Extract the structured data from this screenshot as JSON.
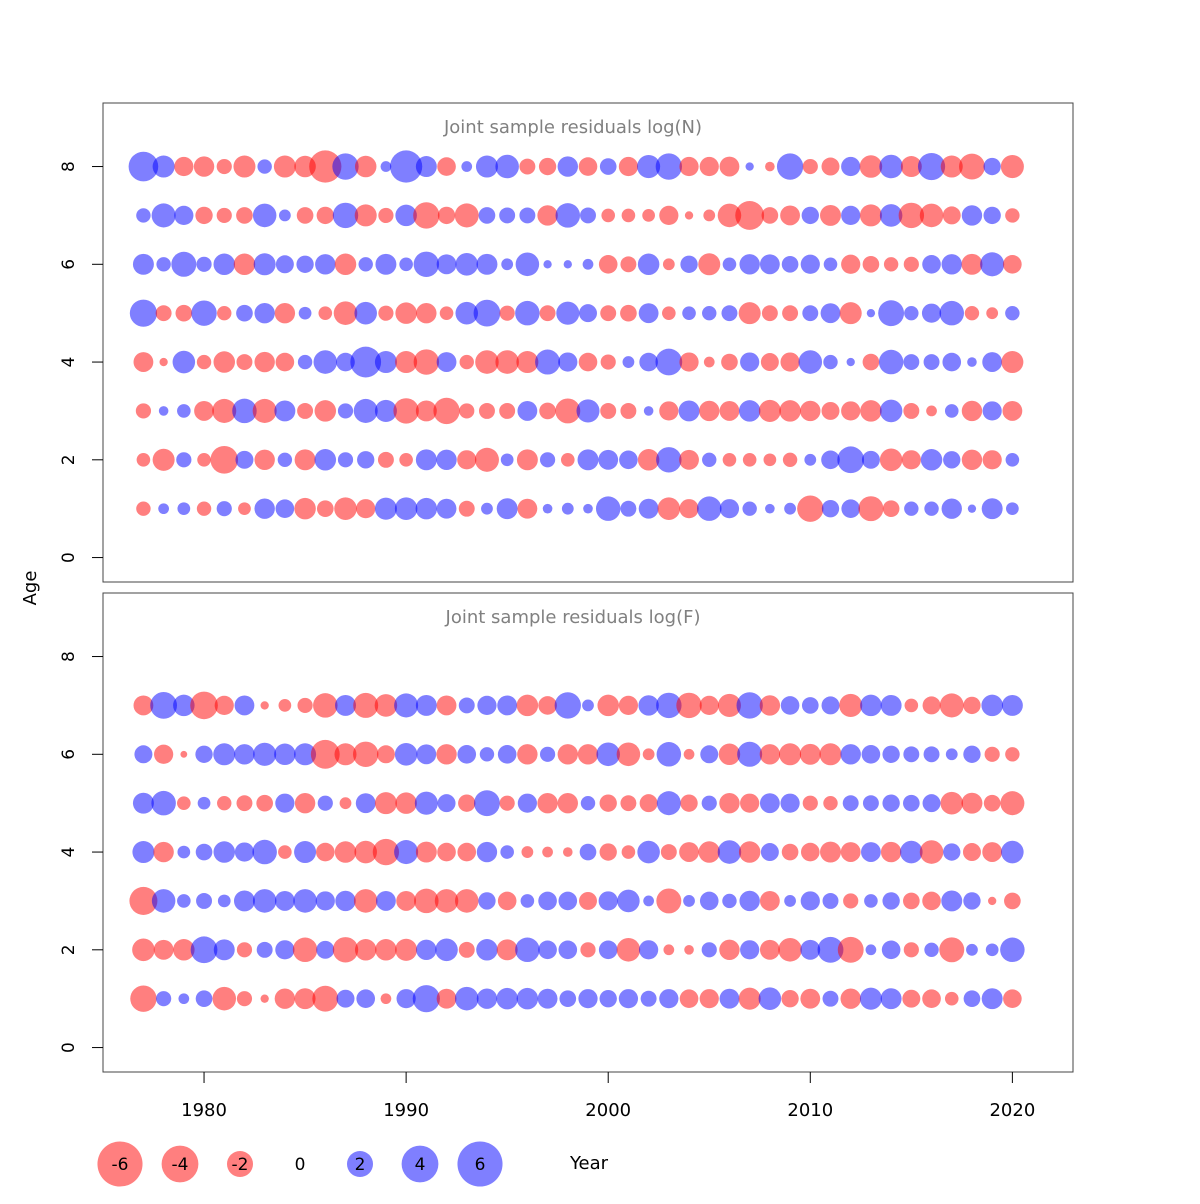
{
  "figure": {
    "ylabel": "Age",
    "xlabel": "Year",
    "colors": {
      "negative": "#ff0000",
      "positive": "#0000ff",
      "frame": "#444444",
      "title": "#808080"
    },
    "legend": {
      "values": [
        -6,
        -4,
        -2,
        0,
        2,
        4,
        6
      ],
      "labels": [
        "-6",
        "-4",
        "-2",
        "0",
        "2",
        "4",
        "6"
      ]
    }
  },
  "chart_data": [
    {
      "type": "scatter",
      "title": "Joint sample residuals log(N)",
      "xlim": [
        1975,
        2023
      ],
      "ylim": [
        -0.5,
        9.3
      ],
      "xticks": [
        1980,
        1990,
        2000,
        2010,
        2020
      ],
      "yticks": [
        0,
        2,
        4,
        6,
        8
      ],
      "years": [
        1977,
        1978,
        1979,
        1980,
        1981,
        1982,
        1983,
        1984,
        1985,
        1986,
        1987,
        1988,
        1989,
        1990,
        1991,
        1992,
        1993,
        1994,
        1995,
        1996,
        1997,
        1998,
        1999,
        2000,
        2001,
        2002,
        2003,
        2004,
        2005,
        2006,
        2007,
        2008,
        2009,
        2010,
        2011,
        2012,
        2013,
        2014,
        2015,
        2016,
        2017,
        2018,
        2019,
        2020
      ],
      "ages": [
        1,
        2,
        3,
        4,
        5,
        6,
        7,
        8
      ],
      "residuals": [
        [
          -0.9,
          0.5,
          0.7,
          -0.9,
          1.0,
          -0.7,
          1.8,
          1.5,
          -2.0,
          -1.2,
          -2.2,
          -1.6,
          2.1,
          2.2,
          2.0,
          1.7,
          -1.1,
          0.6,
          1.9,
          -1.7,
          0.4,
          0.6,
          0.4,
          2.6,
          1.1,
          1.7,
          -2.2,
          -1.6,
          2.6,
          1.6,
          0.9,
          0.4,
          0.6,
          -3.0,
          1.3,
          1.5,
          -2.7,
          -1.2,
          0.9,
          0.9,
          1.8,
          0.3,
          1.9,
          0.7
        ],
        [
          -0.8,
          -2.1,
          1.0,
          -0.8,
          -3.3,
          1.4,
          -1.8,
          0.9,
          -1.9,
          2.0,
          1.0,
          1.3,
          -1.1,
          -0.8,
          1.9,
          1.8,
          -1.6,
          -2.5,
          0.7,
          -1.9,
          1.0,
          -0.8,
          1.9,
          1.7,
          1.5,
          -2.0,
          2.8,
          -1.7,
          0.9,
          -0.8,
          -0.8,
          -0.7,
          -0.9,
          0.6,
          1.5,
          3.1,
          1.4,
          -2.2,
          -1.6,
          2.0,
          1.3,
          -1.8,
          -1.6,
          0.8
        ],
        [
          -1.0,
          0.4,
          0.8,
          -1.7,
          -2.5,
          2.6,
          -2.5,
          1.9,
          -1.1,
          -2.0,
          1.0,
          2.5,
          2.1,
          -2.8,
          -1.9,
          -3.0,
          -1.0,
          -1.1,
          -1.1,
          1.7,
          -1.2,
          -2.7,
          2.3,
          -1.1,
          -1.1,
          0.4,
          -1.6,
          1.9,
          -1.8,
          -1.7,
          2.0,
          -2.1,
          -2.0,
          -1.8,
          -1.4,
          -1.6,
          -2.0,
          2.2,
          -1.1,
          -0.5,
          0.8,
          -1.8,
          1.6,
          -1.7
        ],
        [
          -1.7,
          -0.3,
          2.2,
          -0.9,
          -2.0,
          -1.1,
          -1.8,
          -1.5,
          0.9,
          2.4,
          1.5,
          4.1,
          2.1,
          -2.1,
          -2.8,
          1.7,
          -0.9,
          -2.4,
          -2.4,
          -2.1,
          2.7,
          1.6,
          -1.5,
          -1.0,
          0.6,
          1.5,
          3.1,
          -1.6,
          -0.5,
          -1.2,
          1.6,
          -1.4,
          -1.6,
          2.4,
          0.9,
          0.3,
          -1.2,
          2.6,
          1.1,
          1.1,
          1.5,
          0.4,
          1.7,
          -2.1
        ],
        [
          3.2,
          -1.1,
          -1.2,
          2.8,
          -0.9,
          1.2,
          1.8,
          -1.8,
          0.7,
          -0.8,
          -2.4,
          2.2,
          -1.0,
          -2.0,
          -1.8,
          -0.8,
          2.2,
          3.1,
          -1.0,
          2.6,
          -1.1,
          2.3,
          1.4,
          -1.1,
          -1.2,
          1.7,
          -0.8,
          0.8,
          0.9,
          1.1,
          -2.1,
          -1.1,
          -1.1,
          1.1,
          1.7,
          -2.1,
          0.3,
          2.9,
          0.9,
          1.6,
          2.6,
          -0.9,
          -0.6,
          0.9
        ],
        [
          1.9,
          0.9,
          2.7,
          1.0,
          2.0,
          -2.0,
          2.1,
          1.4,
          1.3,
          1.8,
          -2.0,
          0.9,
          1.9,
          0.8,
          2.8,
          1.7,
          2.2,
          1.9,
          0.6,
          2.4,
          0.3,
          0.3,
          0.5,
          -1.5,
          -1.1,
          2.0,
          -0.6,
          1.3,
          -2.1,
          0.8,
          1.8,
          1.7,
          1.2,
          1.6,
          0.8,
          -1.6,
          -1.2,
          -0.9,
          -1.0,
          1.5,
          1.8,
          -1.9,
          2.5,
          -1.5
        ],
        [
          0.9,
          2.5,
          1.6,
          -1.3,
          -1.0,
          -1.2,
          2.4,
          0.6,
          -1.2,
          -1.3,
          2.8,
          -2.1,
          -1.0,
          2.0,
          -3.0,
          -1.3,
          -2.5,
          1.2,
          1.1,
          1.1,
          -1.8,
          2.6,
          1.1,
          -0.8,
          -0.8,
          -0.7,
          -1.6,
          -0.3,
          -0.6,
          -2.4,
          -3.6,
          -1.2,
          -1.7,
          1.3,
          -1.9,
          1.6,
          -2.1,
          2.2,
          -2.8,
          -2.4,
          -1.4,
          1.8,
          1.3,
          -0.9
        ],
        [
          3.8,
          2.1,
          -1.6,
          -1.8,
          -1.0,
          -2.1,
          0.9,
          -2.1,
          -2.0,
          -4.5,
          3.0,
          -2.0,
          0.5,
          4.5,
          1.9,
          -1.5,
          0.5,
          2.1,
          2.4,
          -1.1,
          -1.3,
          1.8,
          -1.5,
          1.2,
          -1.6,
          2.3,
          3.0,
          -1.6,
          -1.6,
          -1.7,
          0.3,
          -0.4,
          3.0,
          -1.0,
          -1.4,
          1.6,
          -2.2,
          2.4,
          -1.9,
          3.2,
          -2.1,
          -2.9,
          1.3,
          -2.3
        ]
      ]
    },
    {
      "type": "scatter",
      "title": "Joint sample residuals log(F)",
      "xlim": [
        1975,
        2023
      ],
      "ylim": [
        -0.5,
        9.3
      ],
      "xticks": [
        1980,
        1990,
        2000,
        2010,
        2020
      ],
      "yticks": [
        0,
        2,
        4,
        6,
        8
      ],
      "years": [
        1977,
        1978,
        1979,
        1980,
        1981,
        1982,
        1983,
        1984,
        1985,
        1986,
        1987,
        1988,
        1989,
        1990,
        1991,
        1992,
        1993,
        1994,
        1995,
        1996,
        1997,
        1998,
        1999,
        2000,
        2001,
        2002,
        2003,
        2004,
        2005,
        2006,
        2007,
        2008,
        2009,
        2010,
        2011,
        2012,
        2013,
        2014,
        2015,
        2016,
        2017,
        2018,
        2019,
        2020
      ],
      "ages": [
        1,
        2,
        3,
        4,
        5,
        6,
        7
      ],
      "residuals": [
        [
          -3.0,
          1.0,
          0.5,
          1.2,
          -2.4,
          -1.0,
          -0.3,
          -1.8,
          -1.9,
          -2.9,
          1.4,
          1.5,
          -0.5,
          1.6,
          3.2,
          -1.7,
          2.4,
          1.8,
          2.0,
          2.0,
          1.7,
          1.2,
          1.6,
          1.3,
          1.6,
          1.1,
          1.6,
          -1.5,
          -1.6,
          1.7,
          -2.1,
          2.2,
          -1.3,
          -1.7,
          1.1,
          -1.8,
          2.1,
          1.9,
          -1.4,
          -1.5,
          -0.8,
          1.2,
          1.9,
          -1.5
        ],
        [
          -2.2,
          -1.7,
          -2.0,
          3.1,
          1.9,
          -1.0,
          1.1,
          1.6,
          -2.6,
          1.4,
          -2.8,
          -2.0,
          -2.0,
          -2.1,
          1.8,
          2.2,
          -1.1,
          2.0,
          -1.9,
          2.6,
          1.5,
          1.5,
          -1.0,
          1.5,
          -2.4,
          1.6,
          -0.5,
          -0.4,
          1.0,
          -1.8,
          1.6,
          -1.7,
          -2.4,
          1.7,
          2.9,
          -2.9,
          0.5,
          1.5,
          -1.0,
          0.9,
          -2.7,
          0.6,
          0.7,
          2.6
        ],
        [
          -3.4,
          2.4,
          0.8,
          1.1,
          0.7,
          1.9,
          2.4,
          1.7,
          2.4,
          1.6,
          1.8,
          -2.4,
          1.7,
          -1.7,
          -2.6,
          -2.4,
          -2.4,
          1.3,
          -1.5,
          0.8,
          1.5,
          1.5,
          -1.4,
          1.6,
          2.2,
          0.5,
          -2.7,
          0.6,
          1.5,
          0.9,
          1.8,
          -1.7,
          0.6,
          1.6,
          1.1,
          -1.0,
          0.8,
          1.3,
          -1.2,
          -1.5,
          1.9,
          1.3,
          -0.3,
          -1.2
        ],
        [
          2.1,
          -1.8,
          0.7,
          1.2,
          2.0,
          1.6,
          2.6,
          -0.8,
          2.1,
          -1.5,
          -2.0,
          -2.2,
          -3.0,
          2.5,
          -1.9,
          -1.5,
          -1.5,
          1.8,
          0.8,
          -0.6,
          -0.5,
          -0.4,
          1.2,
          -1.3,
          -0.8,
          2.2,
          -1.1,
          -1.7,
          -2.0,
          2.4,
          -2.0,
          1.4,
          -1.2,
          -1.5,
          -1.9,
          -1.7,
          1.7,
          -1.8,
          2.2,
          -2.4,
          1.3,
          -1.4,
          -1.7,
          2.2
        ],
        [
          1.9,
          2.6,
          -0.8,
          0.7,
          -0.9,
          -1.1,
          -1.2,
          1.6,
          -1.8,
          1.0,
          -0.6,
          1.7,
          -2.1,
          -2.0,
          2.3,
          1.4,
          -1.3,
          2.9,
          -1.0,
          1.6,
          -1.8,
          -1.8,
          0.9,
          -1.3,
          -1.1,
          -1.4,
          2.5,
          -1.3,
          1.0,
          -1.8,
          -1.6,
          1.7,
          1.6,
          -1.0,
          -0.9,
          1.1,
          1.1,
          1.3,
          1.2,
          1.4,
          -2.2,
          -1.9,
          -1.2,
          -2.5
        ],
        [
          1.4,
          -1.6,
          -0.2,
          1.3,
          2.1,
          1.8,
          2.3,
          2.0,
          2.1,
          -3.6,
          -2.1,
          -2.8,
          -1.4,
          2.2,
          1.7,
          -1.8,
          1.5,
          0.9,
          1.5,
          -1.8,
          1.0,
          -1.8,
          -1.8,
          2.4,
          -2.4,
          -0.6,
          2.6,
          -0.5,
          1.4,
          -2.0,
          2.7,
          -1.8,
          -2.1,
          -1.9,
          -2.1,
          1.8,
          1.5,
          1.3,
          1.1,
          1.1,
          0.6,
          1.3,
          -1.0,
          -0.9
        ],
        [
          -1.7,
          3.1,
          2.0,
          -3.3,
          -1.6,
          1.7,
          -0.3,
          -0.7,
          -1.0,
          -2.6,
          1.9,
          -2.7,
          -2.2,
          2.5,
          1.9,
          -1.7,
          1.1,
          1.6,
          1.7,
          -2.0,
          -1.5,
          3.0,
          0.6,
          -2.0,
          -1.6,
          1.8,
          2.8,
          -2.8,
          -1.6,
          -2.3,
          3.0,
          -1.8,
          1.5,
          1.2,
          1.4,
          -2.3,
          2.0,
          1.9,
          -0.8,
          -1.4,
          -2.5,
          -1.3,
          2.0,
          1.9
        ]
      ]
    }
  ]
}
